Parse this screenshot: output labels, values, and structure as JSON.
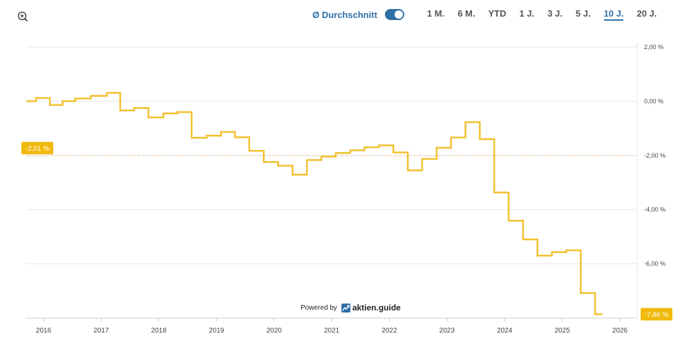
{
  "toolbar": {
    "average_label": "Ø Durchschnitt",
    "average_toggle_on": true,
    "ranges": [
      "1 M.",
      "6 M.",
      "YTD",
      "1 J.",
      "3 J.",
      "5 J.",
      "10 J.",
      "20 J."
    ],
    "active_range": "10 J."
  },
  "branding": {
    "powered_by": "Powered by",
    "brand": "aktien.guide"
  },
  "colors": {
    "line": "#f2c12e",
    "badge": "#f0b90b",
    "average_line": "#f5cfa7",
    "accent": "#2f6fa8"
  },
  "chart_data": {
    "type": "line",
    "title": "",
    "xlabel": "",
    "ylabel": "",
    "ylim": [
      -8,
      2
    ],
    "xlim": [
      2015.7,
      2026.3
    ],
    "y_ticks": [
      {
        "value": 2,
        "label": "2,00 %"
      },
      {
        "value": 0,
        "label": "0,00 %"
      },
      {
        "value": -2,
        "label": "-2,00 %"
      },
      {
        "value": -4,
        "label": "-4,00 %"
      },
      {
        "value": -6,
        "label": "-6,00 %"
      }
    ],
    "x_ticks": [
      "2016",
      "2017",
      "2018",
      "2019",
      "2020",
      "2021",
      "2022",
      "2023",
      "2024",
      "2025",
      "2026"
    ],
    "grid": true,
    "average": {
      "value": -2.01,
      "label": "-2,01 %"
    },
    "last_value": {
      "value": -7.86,
      "label": "-7,86 %"
    },
    "series": [
      {
        "x": [
          2015.7,
          2015.87,
          2016.11,
          2016.33,
          2016.55,
          2016.82,
          2017.1,
          2017.33,
          2017.57,
          2017.82,
          2018.08,
          2018.32,
          2018.57,
          2018.83,
          2019.08,
          2019.32,
          2019.57,
          2019.82,
          2020.07,
          2020.32,
          2020.57,
          2020.82,
          2021.07,
          2021.32,
          2021.57,
          2021.82,
          2022.07,
          2022.32,
          2022.57,
          2022.82,
          2023.07,
          2023.32,
          2023.57,
          2023.82,
          2024.07,
          2024.32,
          2024.57,
          2024.82,
          2025.07,
          2025.32,
          2025.57,
          2025.7
        ],
        "y": [
          0.0,
          0.12,
          -0.14,
          0.0,
          0.1,
          0.2,
          0.31,
          -0.34,
          -0.25,
          -0.6,
          -0.45,
          -0.4,
          -1.35,
          -1.27,
          -1.13,
          -1.33,
          -1.83,
          -2.24,
          -2.38,
          -2.71,
          -2.17,
          -2.04,
          -1.91,
          -1.81,
          -1.7,
          -1.63,
          -1.89,
          -2.55,
          -2.13,
          -1.72,
          -1.34,
          -0.77,
          -1.4,
          -3.37,
          -4.41,
          -5.1,
          -5.7,
          -5.57,
          -5.5,
          -7.08,
          -7.86,
          -7.86
        ]
      }
    ]
  }
}
